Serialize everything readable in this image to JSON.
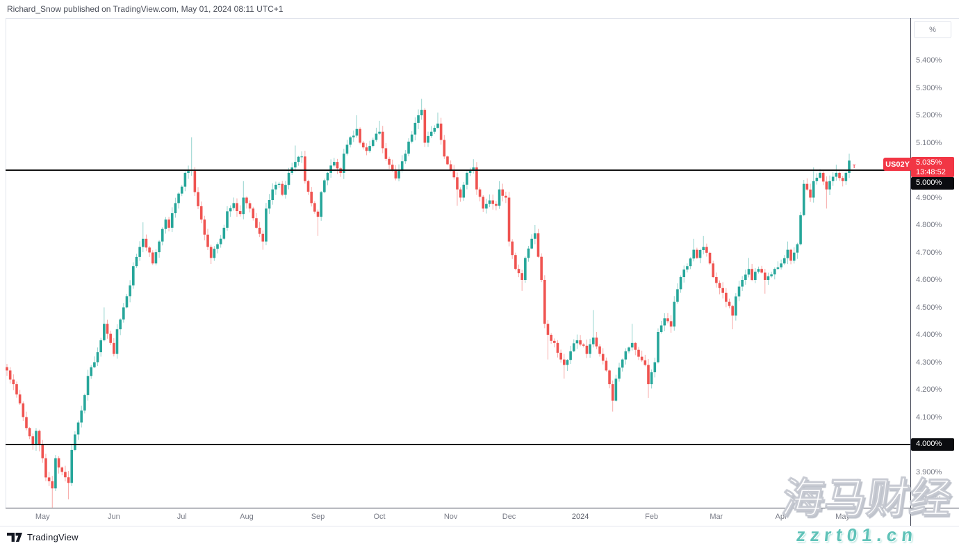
{
  "header": {
    "attribution": "Richard_Snow published on TradingView.com, May 01, 2024 08:11 UTC+1"
  },
  "symbol": {
    "ticker": "US02Y",
    "last_price_label": "5.035%",
    "countdown": "13:48:52",
    "last_price": 5.035,
    "bar_marker": "T"
  },
  "levels": {
    "upper": {
      "label": "5.000%",
      "price": 5.0
    },
    "lower": {
      "label": "4.000%",
      "price": 4.0
    }
  },
  "price_axis": {
    "unit_button": "%",
    "ticks": [
      {
        "label": "5.400%",
        "price": 5.4
      },
      {
        "label": "5.300%",
        "price": 5.3
      },
      {
        "label": "5.200%",
        "price": 5.2
      },
      {
        "label": "5.100%",
        "price": 5.1
      },
      {
        "label": "5.000%",
        "price": 5.0
      },
      {
        "label": "4.900%",
        "price": 4.9
      },
      {
        "label": "4.800%",
        "price": 4.8
      },
      {
        "label": "4.700%",
        "price": 4.7
      },
      {
        "label": "4.600%",
        "price": 4.6
      },
      {
        "label": "4.500%",
        "price": 4.5
      },
      {
        "label": "4.400%",
        "price": 4.4
      },
      {
        "label": "4.300%",
        "price": 4.3
      },
      {
        "label": "4.200%",
        "price": 4.2
      },
      {
        "label": "4.100%",
        "price": 4.1
      },
      {
        "label": "4.000%",
        "price": 4.0
      },
      {
        "label": "3.900%",
        "price": 3.9
      },
      {
        "label": "3.800%",
        "price": 3.8
      }
    ]
  },
  "time_axis": {
    "ticks": [
      {
        "label": "May",
        "day": 11
      },
      {
        "label": "Jun",
        "day": 33
      },
      {
        "label": "Jul",
        "day": 54
      },
      {
        "label": "Aug",
        "day": 74
      },
      {
        "label": "Sep",
        "day": 96
      },
      {
        "label": "Oct",
        "day": 115
      },
      {
        "label": "Nov",
        "day": 137
      },
      {
        "label": "Dec",
        "day": 155
      },
      {
        "label": "2024",
        "day": 177
      },
      {
        "label": "Feb",
        "day": 199
      },
      {
        "label": "Mar",
        "day": 219
      },
      {
        "label": "Apr",
        "day": 239
      },
      {
        "label": "May",
        "day": 258
      }
    ]
  },
  "footer": {
    "brand": "TradingView"
  },
  "watermark": {
    "line1": "海马财经",
    "line2": "zzrt01.cn",
    "accent_color": "#5fc2b8"
  },
  "chart_data": {
    "type": "candlestick",
    "symbol": "US02Y",
    "unit": "yield %",
    "period": "daily, mid-Apr 2023 to May 01 2024",
    "n_candles": 261,
    "last_close": 5.035,
    "horizontal_rays": [
      5.0,
      4.0
    ],
    "visible_price_range": [
      3.77,
      5.56
    ],
    "legend_position": "none",
    "grid": false,
    "colors": {
      "up": "#26a69a",
      "down": "#ef5350",
      "up_wick": "#93d3cd",
      "down_wick": "#f7a9a7",
      "ray": "#111111",
      "last_badge": "#f23645"
    },
    "anchors_note": "[dayIndex, close, spikeHigh|null, spikeLow|null] read from chart",
    "anchors": [
      [
        0,
        4.27,
        null,
        null
      ],
      [
        2,
        4.22,
        null,
        null
      ],
      [
        4,
        4.15,
        null,
        null
      ],
      [
        6,
        4.06,
        null,
        null
      ],
      [
        8,
        4.0,
        null,
        null
      ],
      [
        9,
        4.05,
        null,
        null
      ],
      [
        11,
        3.95,
        null,
        null
      ],
      [
        12,
        3.88,
        null,
        null
      ],
      [
        14,
        3.84,
        null,
        3.77
      ],
      [
        15,
        3.95,
        null,
        null
      ],
      [
        17,
        3.9,
        null,
        null
      ],
      [
        19,
        3.86,
        null,
        3.8
      ],
      [
        20,
        3.98,
        null,
        null
      ],
      [
        22,
        4.08,
        null,
        null
      ],
      [
        24,
        4.18,
        null,
        null
      ],
      [
        25,
        4.25,
        null,
        null
      ],
      [
        27,
        4.3,
        null,
        null
      ],
      [
        29,
        4.38,
        null,
        null
      ],
      [
        30,
        4.44,
        4.5,
        null
      ],
      [
        32,
        4.37,
        null,
        null
      ],
      [
        33,
        4.33,
        null,
        null
      ],
      [
        34,
        4.42,
        null,
        null
      ],
      [
        36,
        4.5,
        null,
        null
      ],
      [
        38,
        4.58,
        null,
        null
      ],
      [
        39,
        4.65,
        null,
        null
      ],
      [
        41,
        4.72,
        null,
        null
      ],
      [
        42,
        4.75,
        4.81,
        null
      ],
      [
        44,
        4.7,
        null,
        null
      ],
      [
        45,
        4.66,
        null,
        null
      ],
      [
        47,
        4.74,
        null,
        null
      ],
      [
        49,
        4.82,
        null,
        null
      ],
      [
        50,
        4.79,
        null,
        null
      ],
      [
        52,
        4.88,
        null,
        null
      ],
      [
        54,
        4.94,
        null,
        null
      ],
      [
        55,
        4.99,
        null,
        null
      ],
      [
        57,
        5.0,
        5.12,
        null
      ],
      [
        58,
        4.92,
        null,
        null
      ],
      [
        60,
        4.82,
        null,
        null
      ],
      [
        62,
        4.72,
        null,
        null
      ],
      [
        63,
        4.68,
        null,
        null
      ],
      [
        65,
        4.73,
        null,
        null
      ],
      [
        67,
        4.79,
        null,
        null
      ],
      [
        68,
        4.85,
        null,
        null
      ],
      [
        70,
        4.88,
        null,
        null
      ],
      [
        72,
        4.84,
        null,
        null
      ],
      [
        73,
        4.9,
        4.96,
        null
      ],
      [
        75,
        4.86,
        null,
        null
      ],
      [
        77,
        4.79,
        null,
        null
      ],
      [
        79,
        4.74,
        null,
        4.71
      ],
      [
        80,
        4.86,
        null,
        null
      ],
      [
        82,
        4.93,
        null,
        null
      ],
      [
        84,
        4.95,
        null,
        null
      ],
      [
        85,
        4.91,
        null,
        null
      ],
      [
        87,
        4.99,
        null,
        null
      ],
      [
        89,
        5.03,
        5.09,
        null
      ],
      [
        91,
        5.05,
        null,
        null
      ],
      [
        92,
        4.96,
        null,
        null
      ],
      [
        94,
        4.88,
        null,
        null
      ],
      [
        96,
        4.83,
        null,
        4.76
      ],
      [
        97,
        4.92,
        null,
        null
      ],
      [
        99,
        4.99,
        null,
        null
      ],
      [
        101,
        5.03,
        null,
        null
      ],
      [
        103,
        4.99,
        null,
        null
      ],
      [
        104,
        5.06,
        null,
        null
      ],
      [
        106,
        5.12,
        null,
        null
      ],
      [
        108,
        5.15,
        5.2,
        null
      ],
      [
        109,
        5.1,
        null,
        null
      ],
      [
        111,
        5.07,
        null,
        null
      ],
      [
        113,
        5.11,
        null,
        null
      ],
      [
        115,
        5.14,
        5.18,
        null
      ],
      [
        116,
        5.08,
        null,
        null
      ],
      [
        118,
        5.02,
        null,
        null
      ],
      [
        120,
        4.97,
        null,
        null
      ],
      [
        121,
        5.0,
        null,
        null
      ],
      [
        123,
        5.06,
        null,
        null
      ],
      [
        125,
        5.13,
        null,
        null
      ],
      [
        127,
        5.2,
        null,
        null
      ],
      [
        128,
        5.22,
        5.26,
        null
      ],
      [
        129,
        5.1,
        null,
        null
      ],
      [
        131,
        5.14,
        null,
        null
      ],
      [
        133,
        5.17,
        5.21,
        null
      ],
      [
        134,
        5.11,
        null,
        null
      ],
      [
        135,
        5.05,
        null,
        null
      ],
      [
        137,
        5.0,
        null,
        null
      ],
      [
        139,
        4.93,
        null,
        4.87
      ],
      [
        140,
        4.9,
        null,
        null
      ],
      [
        142,
        4.99,
        null,
        null
      ],
      [
        144,
        5.01,
        5.04,
        null
      ],
      [
        145,
        4.93,
        null,
        null
      ],
      [
        147,
        4.86,
        null,
        null
      ],
      [
        149,
        4.89,
        null,
        null
      ],
      [
        151,
        4.87,
        null,
        null
      ],
      [
        152,
        4.93,
        4.96,
        null
      ],
      [
        154,
        4.9,
        null,
        null
      ],
      [
        155,
        4.74,
        null,
        null
      ],
      [
        157,
        4.64,
        null,
        null
      ],
      [
        159,
        4.6,
        null,
        4.56
      ],
      [
        160,
        4.68,
        null,
        null
      ],
      [
        162,
        4.75,
        null,
        null
      ],
      [
        163,
        4.77,
        4.8,
        null
      ],
      [
        165,
        4.6,
        null,
        null
      ],
      [
        166,
        4.44,
        null,
        null
      ],
      [
        167,
        4.4,
        null,
        4.31
      ],
      [
        169,
        4.37,
        null,
        null
      ],
      [
        171,
        4.31,
        null,
        null
      ],
      [
        172,
        4.29,
        null,
        4.24
      ],
      [
        174,
        4.34,
        null,
        null
      ],
      [
        176,
        4.38,
        null,
        null
      ],
      [
        178,
        4.36,
        null,
        null
      ],
      [
        179,
        4.33,
        null,
        null
      ],
      [
        181,
        4.39,
        4.49,
        null
      ],
      [
        183,
        4.33,
        null,
        null
      ],
      [
        185,
        4.27,
        null,
        null
      ],
      [
        186,
        4.22,
        null,
        null
      ],
      [
        187,
        4.16,
        null,
        4.12
      ],
      [
        188,
        4.24,
        null,
        null
      ],
      [
        190,
        4.31,
        null,
        null
      ],
      [
        191,
        4.34,
        null,
        null
      ],
      [
        193,
        4.37,
        4.44,
        null
      ],
      [
        195,
        4.32,
        null,
        null
      ],
      [
        197,
        4.29,
        null,
        null
      ],
      [
        198,
        4.22,
        null,
        4.17
      ],
      [
        200,
        4.3,
        null,
        null
      ],
      [
        201,
        4.41,
        null,
        null
      ],
      [
        203,
        4.46,
        null,
        null
      ],
      [
        205,
        4.43,
        null,
        null
      ],
      [
        206,
        4.52,
        null,
        null
      ],
      [
        208,
        4.61,
        null,
        null
      ],
      [
        210,
        4.65,
        null,
        null
      ],
      [
        212,
        4.71,
        4.75,
        null
      ],
      [
        213,
        4.68,
        null,
        null
      ],
      [
        215,
        4.72,
        4.76,
        null
      ],
      [
        217,
        4.66,
        null,
        null
      ],
      [
        218,
        4.61,
        null,
        null
      ],
      [
        220,
        4.57,
        null,
        null
      ],
      [
        222,
        4.52,
        null,
        null
      ],
      [
        224,
        4.47,
        null,
        4.42
      ],
      [
        225,
        4.54,
        null,
        null
      ],
      [
        227,
        4.6,
        null,
        null
      ],
      [
        229,
        4.64,
        4.68,
        null
      ],
      [
        230,
        4.6,
        null,
        null
      ],
      [
        232,
        4.64,
        null,
        null
      ],
      [
        234,
        4.6,
        null,
        4.55
      ],
      [
        236,
        4.62,
        null,
        null
      ],
      [
        237,
        4.64,
        null,
        null
      ],
      [
        239,
        4.66,
        null,
        null
      ],
      [
        241,
        4.71,
        4.74,
        null
      ],
      [
        242,
        4.67,
        null,
        null
      ],
      [
        244,
        4.73,
        null,
        null
      ],
      [
        246,
        4.95,
        null,
        null
      ],
      [
        248,
        4.9,
        null,
        null
      ],
      [
        249,
        4.96,
        5.01,
        null
      ],
      [
        251,
        4.99,
        null,
        null
      ],
      [
        253,
        4.93,
        null,
        4.86
      ],
      [
        254,
        4.96,
        null,
        null
      ],
      [
        256,
        4.99,
        5.02,
        null
      ],
      [
        258,
        4.96,
        null,
        null
      ],
      [
        259,
        4.99,
        null,
        null
      ],
      [
        260,
        5.035,
        5.06,
        null
      ]
    ]
  }
}
